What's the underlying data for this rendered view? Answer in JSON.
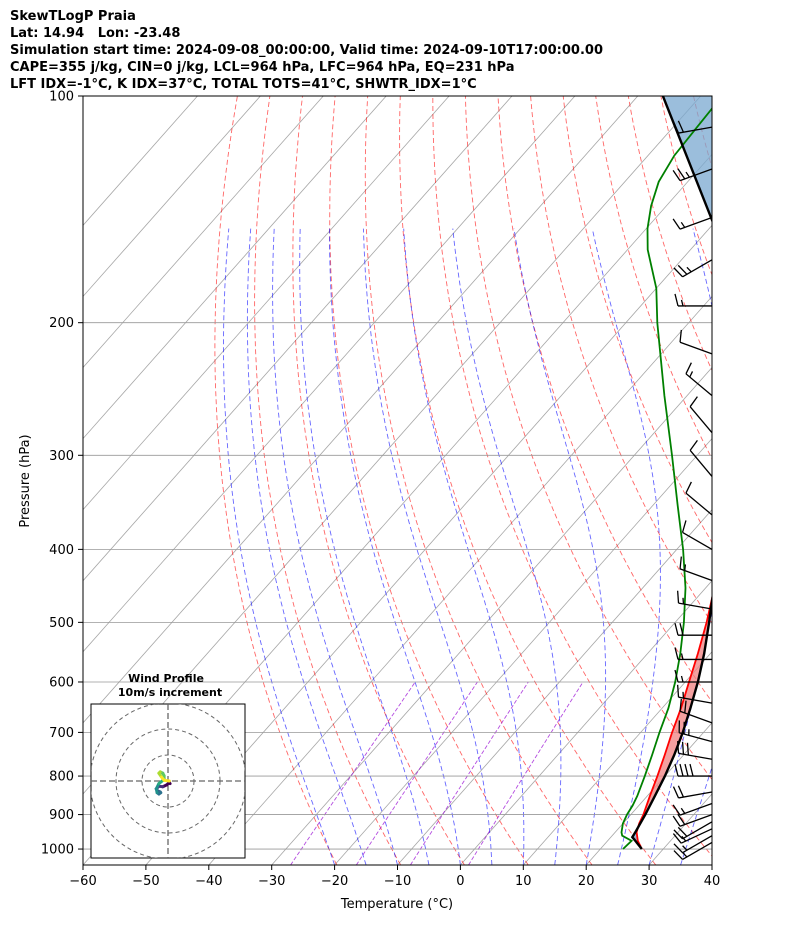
{
  "header": {
    "line1": "SkewTLogP Praia",
    "line2": "Lat: 14.94   Lon: -23.48",
    "line3": "Simulation start time: 2024-09-08_00:00:00, Valid time: 2024-09-10T17:00:00.00",
    "line4": "CAPE=355 j/kg, CIN=0 j/kg, LCL=964 hPa, LFC=964 hPa, EQ=231 hPa",
    "line5": "LFT IDX=-1°C, K IDX=37°C, TOTAL TOTS=41°C, SHWTR_IDX=1°C"
  },
  "chart_data": {
    "type": "line",
    "xlabel": "Temperature (°C)",
    "ylabel": "Pressure (hPa)",
    "xlim": [
      -60,
      40
    ],
    "ylim": [
      1050,
      100
    ],
    "y_scale": "log",
    "x_ticks": [
      -60,
      -50,
      -40,
      -30,
      -20,
      -10,
      0,
      10,
      20,
      30,
      40
    ],
    "y_ticks": [
      1000,
      900,
      800,
      700,
      600,
      500,
      400,
      300,
      200,
      100
    ],
    "grid": true,
    "temperature": {
      "color": "#ff0000",
      "p": [
        1000,
        975,
        950,
        925,
        900,
        850,
        800,
        750,
        700,
        650,
        600,
        550,
        500,
        450,
        400,
        350,
        300,
        250,
        200,
        180,
        160,
        150,
        140,
        130,
        120,
        110,
        100
      ],
      "t": [
        26.6,
        24.8,
        23.4,
        22.6,
        22.0,
        20.4,
        18.8,
        17.0,
        15.0,
        13.0,
        10.6,
        8.0,
        5.0,
        1.4,
        -3.0,
        -8.4,
        -15.0,
        -23.0,
        -33.0,
        -37.2,
        -41.8,
        -44.2,
        -47.4,
        -51.0,
        -55.2,
        -60.0,
        -64.0
      ]
    },
    "dewpoint": {
      "color": "#008000",
      "p": [
        1000,
        975,
        960,
        950,
        925,
        900,
        875,
        850,
        800,
        750,
        700,
        650,
        600,
        550,
        500,
        450,
        400,
        350,
        300,
        250,
        200,
        180,
        160,
        150,
        140,
        130,
        120,
        110,
        100
      ],
      "td": [
        23.6,
        23.8,
        21.6,
        21.0,
        20.0,
        19.4,
        19.0,
        18.4,
        16.8,
        15.0,
        13.0,
        11.0,
        8.4,
        5.2,
        1.4,
        -3.2,
        -9.0,
        -16.0,
        -24.0,
        -33.6,
        -45.0,
        -50.0,
        -56.8,
        -59.8,
        -62.4,
        -64.6,
        -65.8,
        -66.2,
        -66.6
      ]
    },
    "parcel": {
      "color": "#000000",
      "p": [
        1000,
        975,
        964,
        950,
        900,
        850,
        800,
        750,
        700,
        650,
        600,
        550,
        500,
        450,
        400,
        350,
        300,
        250,
        231,
        200,
        150,
        100
      ],
      "t": [
        26.6,
        24.4,
        23.4,
        23.2,
        22.3,
        21.2,
        20.0,
        18.5,
        16.7,
        14.5,
        12.0,
        9.0,
        5.4,
        1.3,
        -3.4,
        -9.0,
        -15.8,
        -24.0,
        -27.4,
        -35.0,
        -49.0,
        -76.0
      ]
    },
    "cape_shading_color": "#f08080",
    "cin_shading_color": "#7aa8d0",
    "dry_adiabat_color": "#ff0000",
    "moist_adiabat_color": "#0000ff",
    "mixing_ratio_color": "#9400d3",
    "isotherm_color": "#808080",
    "wind_barbs": {
      "p": [
        980,
        960,
        940,
        920,
        900,
        870,
        840,
        800,
        760,
        720,
        680,
        640,
        600,
        560,
        520,
        480,
        440,
        400,
        360,
        320,
        280,
        250,
        220,
        190,
        165,
        145,
        125,
        110
      ],
      "speed_kt": [
        15,
        15,
        15,
        20,
        20,
        15,
        20,
        40,
        30,
        25,
        20,
        15,
        15,
        15,
        20,
        15,
        15,
        10,
        10,
        10,
        10,
        15,
        10,
        15,
        25,
        15,
        25,
        20
      ],
      "direction_deg": [
        240,
        240,
        245,
        240,
        250,
        250,
        260,
        270,
        280,
        285,
        290,
        280,
        270,
        270,
        270,
        280,
        290,
        300,
        310,
        320,
        320,
        310,
        290,
        270,
        240,
        250,
        250,
        260
      ]
    },
    "wind_profile_inset": {
      "title": "Wind Profile",
      "subtitle": "10m/s increment",
      "rings_ms": [
        10,
        20,
        30
      ],
      "hodograph_u": [
        0.8,
        0.5,
        -0.5,
        -2.0,
        -3.5,
        -4.5,
        -4.0,
        -3.0,
        -2.8,
        -3.5,
        -4.2,
        -4.5,
        -3.5,
        -2.0,
        -1.5,
        -1.5,
        -2.0,
        -3.0,
        -3.5,
        -2.5,
        -1.5,
        0.5
      ],
      "hodograph_v": [
        -1.0,
        -0.5,
        -1.5,
        -2.2,
        -2.0,
        -3.0,
        -3.8,
        -4.2,
        -4.5,
        -5.0,
        -4.5,
        -3.0,
        -1.0,
        0.2,
        1.0,
        2.0,
        3.0,
        3.5,
        3.0,
        1.5,
        0.3,
        0.0
      ]
    }
  }
}
